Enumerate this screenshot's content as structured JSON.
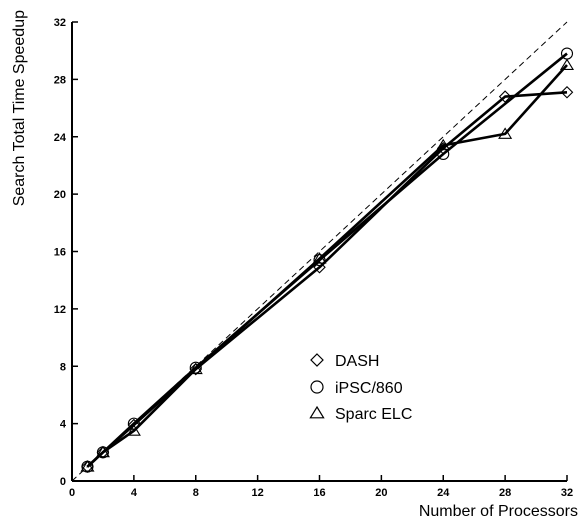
{
  "chart_data": {
    "type": "line",
    "xlabel": "Number of Processors",
    "ylabel": "Search Total Time Speedup",
    "xlim": [
      0,
      32
    ],
    "ylim": [
      0,
      32
    ],
    "xticks": [
      0,
      4,
      8,
      12,
      16,
      20,
      24,
      28,
      32
    ],
    "yticks": [
      0,
      4,
      8,
      12,
      16,
      20,
      24,
      28,
      32
    ],
    "xtick_labels": [
      "0",
      "4",
      "8",
      "12",
      "16",
      "20",
      "24",
      "28",
      "32"
    ],
    "ytick_labels": [
      "0",
      "4",
      "8",
      "12",
      "16",
      "20",
      "24",
      "28",
      "32"
    ],
    "grid": false,
    "legend_position": "lower-right",
    "reference_line": {
      "style": "dashed",
      "x": [
        0,
        32
      ],
      "y": [
        0,
        32
      ]
    },
    "series": [
      {
        "name": "DASH",
        "marker": "diamond",
        "x": [
          1,
          2,
          4,
          8,
          16,
          24,
          28,
          32
        ],
        "y": [
          1.0,
          2.0,
          3.9,
          7.8,
          14.9,
          23.2,
          26.8,
          27.1
        ]
      },
      {
        "name": "iPSC/860",
        "marker": "circle",
        "x": [
          1,
          2,
          4,
          8,
          16,
          24,
          32
        ],
        "y": [
          1.0,
          2.0,
          4.0,
          7.9,
          15.4,
          22.8,
          29.8
        ]
      },
      {
        "name": "Sparc ELC",
        "marker": "triangle",
        "x": [
          1,
          2,
          4,
          8,
          16,
          24,
          28,
          32
        ],
        "y": [
          1.0,
          2.0,
          3.5,
          7.8,
          15.5,
          23.4,
          24.2,
          29.0
        ]
      }
    ]
  }
}
